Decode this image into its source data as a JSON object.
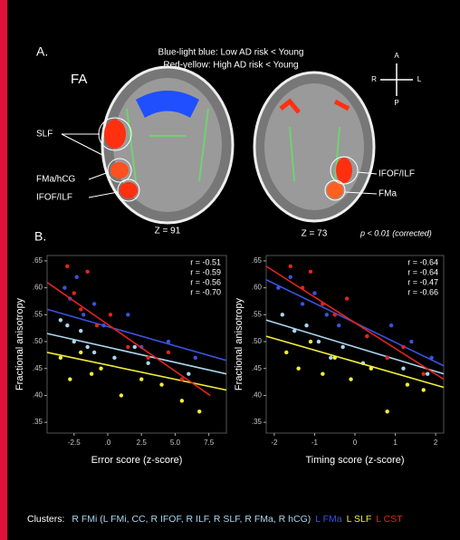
{
  "figure": {
    "panel_a": "A.",
    "panel_b": "B.",
    "note_1": "Blue-light blue: Low AD risk < Young",
    "note_2": "Red-yellow: High AD risk < Young",
    "measure": "FA",
    "left_labels": [
      "SLF",
      "FMa/hCG",
      "IFOF/ILF"
    ],
    "right_labels": [
      "IFOF/ILF",
      "FMa"
    ],
    "slice_1": "Z = 91",
    "slice_2": "Z = 73",
    "significance": "p < 0.01 (corrected)",
    "compass": [
      "A",
      "P",
      "R",
      "L"
    ],
    "legend_title": "Clusters:"
  },
  "chart_data": [
    {
      "type": "scatter",
      "xlabel": "Error score (z-score)",
      "ylabel": "Fractional anisotropy",
      "xlim": [
        -4.5,
        8.8
      ],
      "xticks": [
        -2.5,
        {
          "value": 0,
          "label": ".0"
        },
        2.5,
        {
          "value": 5,
          "label": "5.0"
        },
        7.5
      ],
      "ylim": [
        0.33,
        0.66
      ],
      "yticks": [
        {
          "value": 0.35,
          "label": ".35"
        },
        {
          "value": 0.4,
          "label": ".40"
        },
        {
          "value": 0.45,
          "label": ".45"
        },
        {
          "value": 0.5,
          "label": ".50"
        },
        {
          "value": 0.55,
          "label": ".55"
        },
        {
          "value": 0.6,
          "label": ".60"
        },
        {
          "value": 0.65,
          "label": ".65"
        }
      ],
      "series": [
        {
          "name": "R FMi (L FMi, CC, R IFOF, R ILF, R SLF, R FMa, R hCG)",
          "color": "#a9d6ee",
          "x": [
            -3.5,
            -3,
            -2.5,
            -2,
            -1.5,
            -1,
            0.5,
            2,
            3,
            6
          ],
          "y": [
            0.54,
            0.53,
            0.5,
            0.52,
            0.49,
            0.48,
            0.47,
            0.49,
            0.46,
            0.44
          ],
          "trend_x": [
            -4.5,
            8.8
          ],
          "trend_y": [
            0.515,
            0.44
          ]
        },
        {
          "name": "L FMa",
          "color": "#3b52e0",
          "x": [
            -3.2,
            -2.8,
            -2.3,
            -1.8,
            -1,
            -0.3,
            1.5,
            2.5,
            4.5,
            6.5
          ],
          "y": [
            0.6,
            0.58,
            0.62,
            0.55,
            0.57,
            0.53,
            0.55,
            0.49,
            0.5,
            0.47
          ],
          "trend_x": [
            -4.5,
            8.8
          ],
          "trend_y": [
            0.56,
            0.465
          ]
        },
        {
          "name": "L SLF",
          "color": "#f2ee3c",
          "x": [
            -3.5,
            -2.8,
            -2,
            -1.2,
            -0.5,
            1,
            2.5,
            4,
            5.5,
            6.8
          ],
          "y": [
            0.47,
            0.43,
            0.48,
            0.44,
            0.45,
            0.4,
            0.43,
            0.42,
            0.39,
            0.37
          ],
          "trend_x": [
            -4.5,
            8.8
          ],
          "trend_y": [
            0.48,
            0.41
          ]
        },
        {
          "name": "L CST",
          "color": "#e3241e",
          "x": [
            -3,
            -2.5,
            -2,
            -1.5,
            -0.8,
            0.2,
            1.5,
            3,
            4.5,
            5.5
          ],
          "y": [
            0.64,
            0.59,
            0.56,
            0.63,
            0.53,
            0.55,
            0.49,
            0.47,
            0.48,
            0.43
          ],
          "trend_x": [
            -4.5,
            7.6
          ],
          "trend_y": [
            0.61,
            0.4
          ]
        }
      ],
      "annotations": [
        "r = -0.51",
        "r = -0.59",
        "r = -0.56",
        "r = -0.70"
      ]
    },
    {
      "type": "scatter",
      "xlabel": "Timing score (z-score)",
      "ylabel": "Fractional anisotropy",
      "xlim": [
        -2.2,
        2.2
      ],
      "xticks": [
        -2,
        -1,
        0,
        1,
        2
      ],
      "ylim": [
        0.33,
        0.66
      ],
      "yticks": [
        {
          "value": 0.35,
          "label": ".35"
        },
        {
          "value": 0.4,
          "label": ".40"
        },
        {
          "value": 0.45,
          "label": ".45"
        },
        {
          "value": 0.5,
          "label": ".50"
        },
        {
          "value": 0.55,
          "label": ".55"
        },
        {
          "value": 0.6,
          "label": ".60"
        },
        {
          "value": 0.65,
          "label": ".65"
        }
      ],
      "series": [
        {
          "color": "#a9d6ee",
          "x": [
            -1.8,
            -1.5,
            -1.2,
            -0.9,
            -0.6,
            -0.3,
            0.2,
            0.8,
            1.2,
            1.8
          ],
          "y": [
            0.55,
            0.52,
            0.53,
            0.5,
            0.47,
            0.49,
            0.46,
            0.47,
            0.45,
            0.44
          ],
          "trend_x": [
            -2.2,
            2.2
          ],
          "trend_y": [
            0.54,
            0.44
          ]
        },
        {
          "color": "#3b52e0",
          "x": [
            -1.9,
            -1.6,
            -1.3,
            -1,
            -0.7,
            -0.4,
            0.3,
            0.9,
            1.4,
            1.9
          ],
          "y": [
            0.6,
            0.62,
            0.57,
            0.59,
            0.55,
            0.53,
            0.51,
            0.53,
            0.5,
            0.47
          ],
          "trend_x": [
            -2.2,
            2.2
          ],
          "trend_y": [
            0.615,
            0.455
          ]
        },
        {
          "color": "#f2ee3c",
          "x": [
            -1.7,
            -1.4,
            -1.1,
            -0.8,
            -0.5,
            -0.1,
            0.4,
            0.8,
            1.3,
            1.7
          ],
          "y": [
            0.48,
            0.45,
            0.5,
            0.44,
            0.47,
            0.43,
            0.45,
            0.37,
            0.42,
            0.41
          ],
          "trend_x": [
            -2.2,
            2.2
          ],
          "trend_y": [
            0.51,
            0.415
          ]
        },
        {
          "color": "#e3241e",
          "x": [
            -1.6,
            -1.3,
            -1.1,
            -0.8,
            -0.5,
            -0.2,
            0.3,
            0.8,
            1.2,
            1.7
          ],
          "y": [
            0.64,
            0.6,
            0.63,
            0.57,
            0.55,
            0.58,
            0.51,
            0.47,
            0.49,
            0.44
          ],
          "trend_x": [
            -2.2,
            2.2
          ],
          "trend_y": [
            0.64,
            0.43
          ]
        }
      ],
      "annotations": [
        "r = -0.64",
        "r = -0.64",
        "r = -0.47",
        "r = -0.66"
      ]
    }
  ]
}
